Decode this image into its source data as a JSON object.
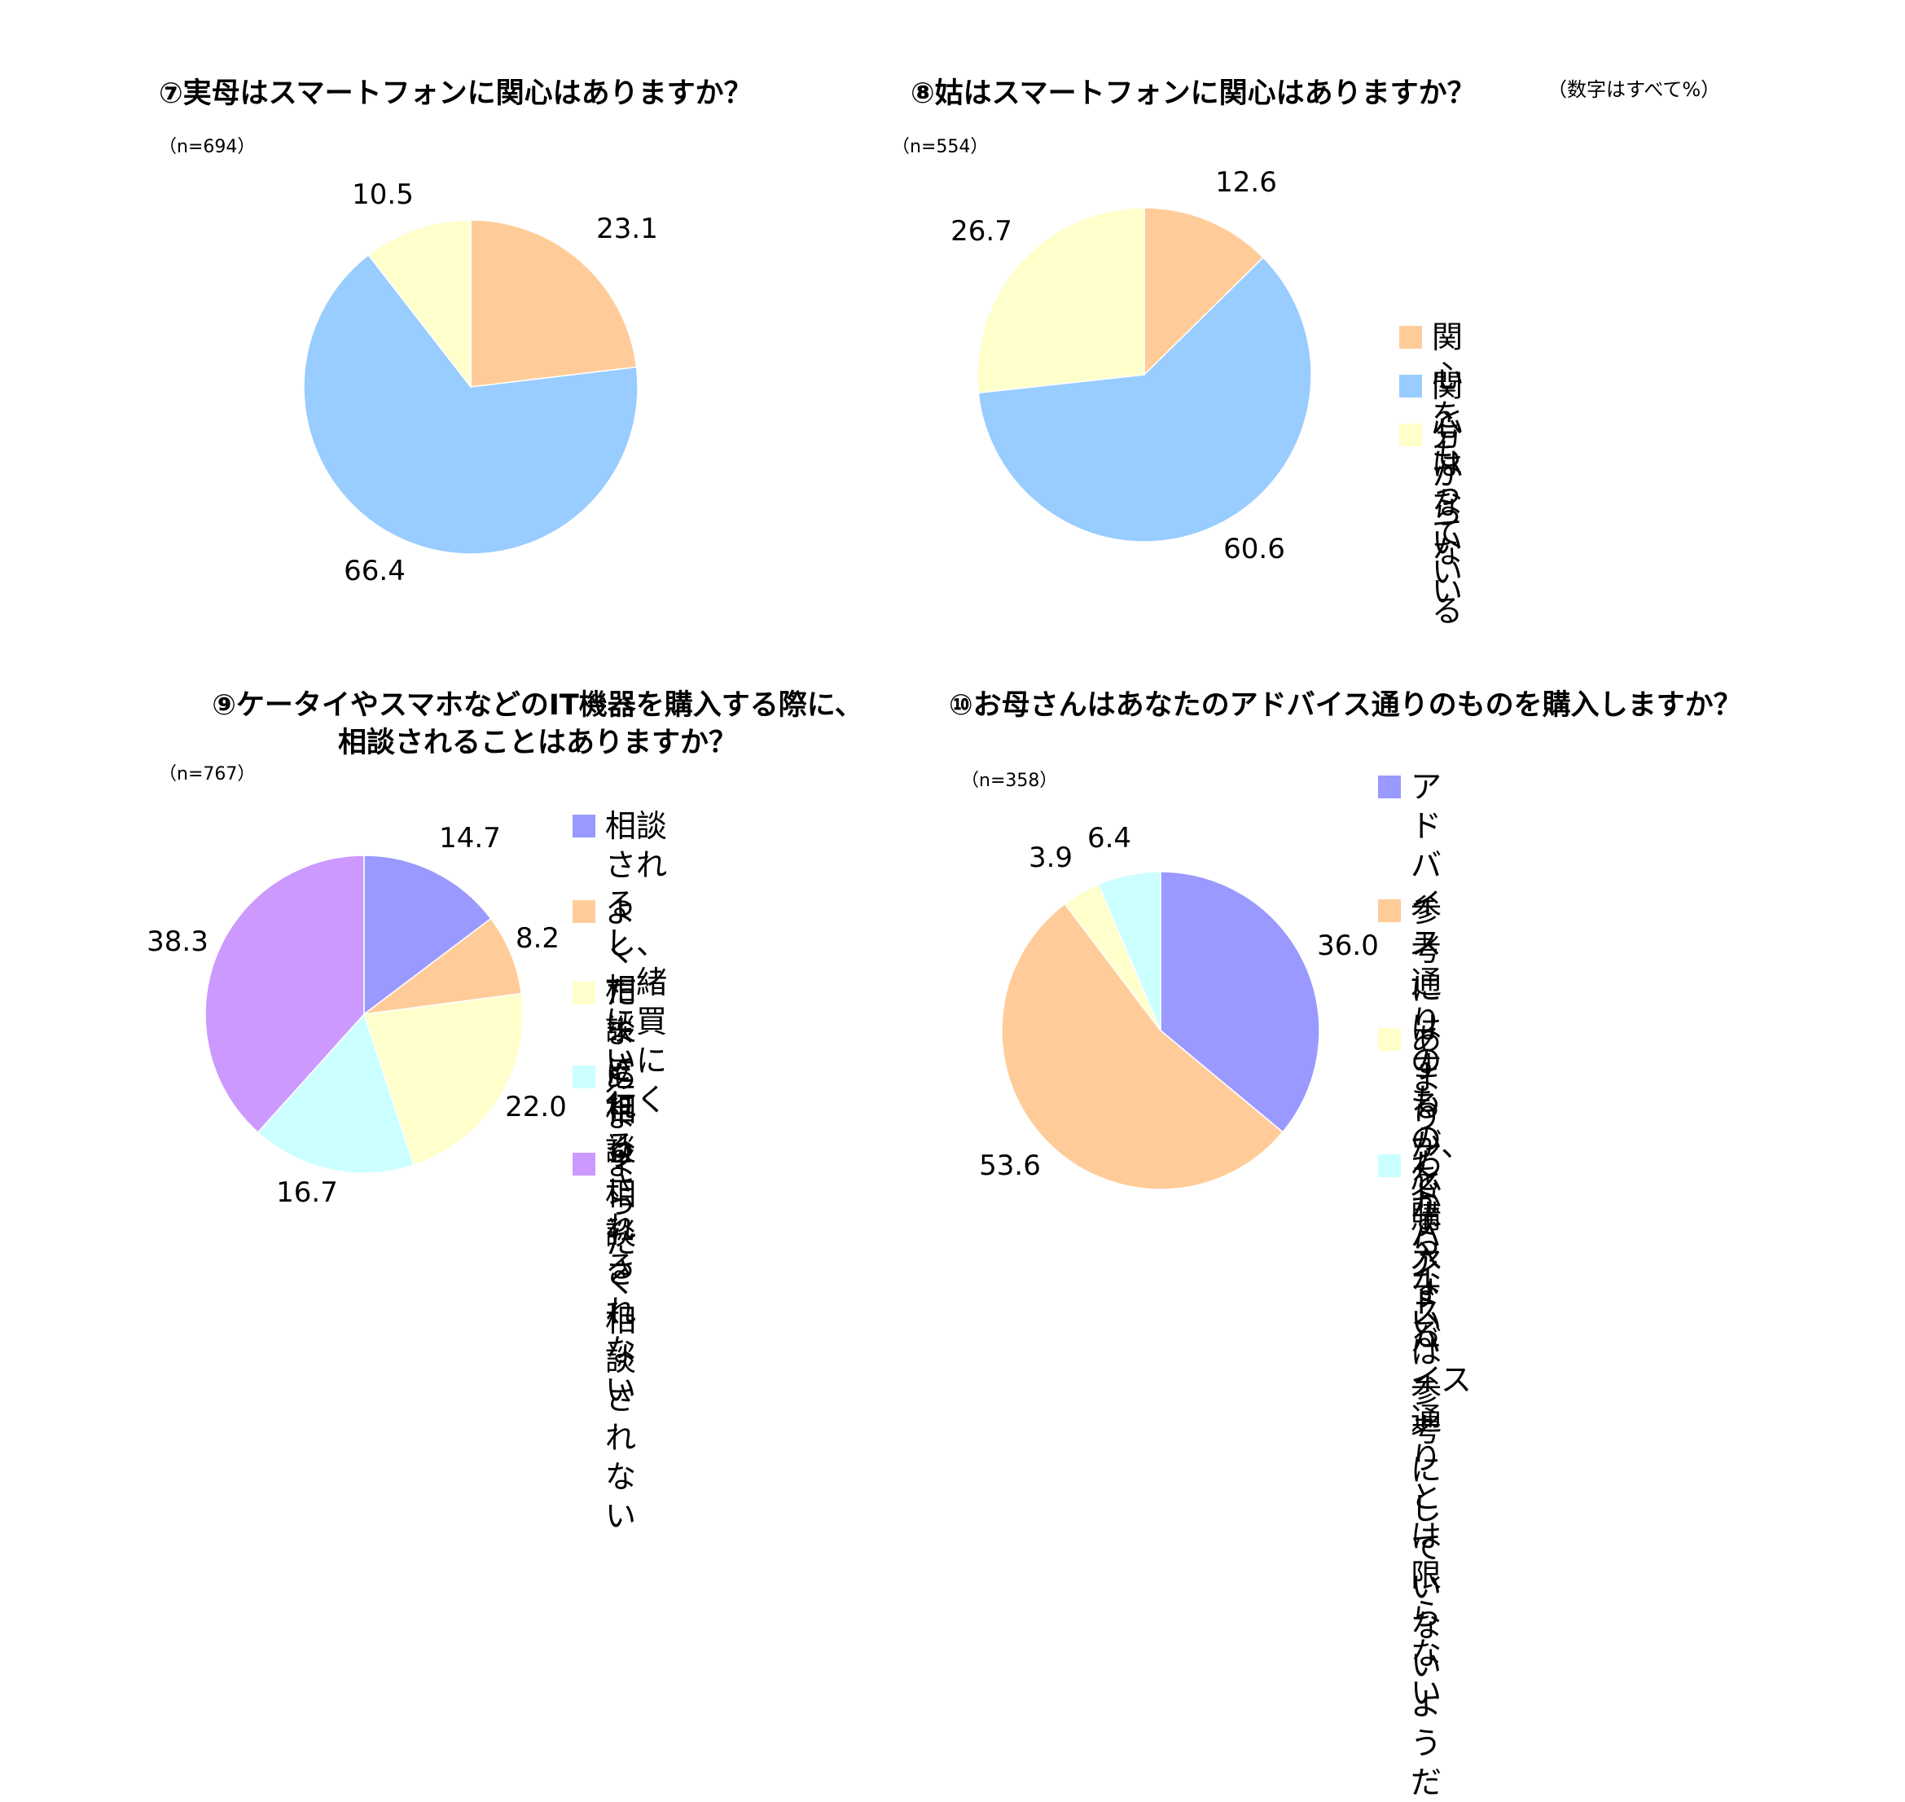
{
  "note": "（数字はすべて%）",
  "colors": {
    "peach": "#FFCC99",
    "sky": "#99CCFF",
    "cream": "#FFFFCC",
    "lavender": "#9999FF",
    "cyan": "#CCFFFF",
    "violet": "#CC99FF"
  },
  "legends": {
    "chart8": [
      {
        "label": "関心をもっている",
        "color": "#FFCC99"
      },
      {
        "label": "関心はない",
        "color": "#99CCFF"
      },
      {
        "label": "分からない",
        "color": "#FFFFCC"
      }
    ],
    "chart9": [
      {
        "label": "相談されるし、一緒\nに買いに行く",
        "color": "#9999FF"
      },
      {
        "label": "よく相談される",
        "color": "#FFCC99"
      },
      {
        "label": "たまに相談される",
        "color": "#FFFFCC"
      },
      {
        "label": "あまり相談されない",
        "color": "#CCFFFF"
      },
      {
        "label": "まったく相談されない",
        "color": "#CC99FF"
      }
    ],
    "chart10": [
      {
        "label": "アドバイス通りのもの\nを購入する",
        "color": "#9999FF"
      },
      {
        "label": "参考にはするが、必\nずアドバイス通りとは\n限らない",
        "color": "#FFCC99"
      },
      {
        "label": "あまりアドバイスは\n参考にしていないよ\nうだ",
        "color": "#FFFFCC"
      },
      {
        "label": "わからない",
        "color": "#CCFFFF"
      }
    ]
  },
  "chart_data": [
    {
      "type": "pie",
      "title": "⑦実母はスマートフォンに関心はありますか？",
      "n_label": "（n=694）",
      "values": [
        23.1,
        66.4,
        10.5
      ],
      "value_labels": [
        "23.1",
        "66.4",
        "10.5"
      ],
      "colors": [
        "#FFCC99",
        "#99CCFF",
        "#FFFFCC"
      ],
      "categories": [
        "関心をもっている",
        "関心はない",
        "分からない"
      ]
    },
    {
      "type": "pie",
      "title": "⑧姑はスマートフォンに関心はありますか？",
      "n_label": "（n=554）",
      "values": [
        12.6,
        60.6,
        26.7
      ],
      "value_labels": [
        "12.6",
        "60.6",
        "26.7"
      ],
      "colors": [
        "#FFCC99",
        "#99CCFF",
        "#FFFFCC"
      ],
      "categories": [
        "関心をもっている",
        "関心はない",
        "分からない"
      ]
    },
    {
      "type": "pie",
      "title_lines": [
        "⑨ケータイやスマホなどのIT機器を購入する際に、",
        "相談されることはありますか？"
      ],
      "n_label": "（n=767）",
      "values": [
        14.7,
        8.2,
        22.0,
        16.7,
        38.3
      ],
      "value_labels": [
        "14.7",
        "8.2",
        "22.0",
        "16.7",
        "38.3"
      ],
      "colors": [
        "#9999FF",
        "#FFCC99",
        "#FFFFCC",
        "#CCFFFF",
        "#CC99FF"
      ],
      "categories": [
        "相談されるし、一緒に買いに行く",
        "よく相談される",
        "たまに相談される",
        "あまり相談されない",
        "まったく相談されない"
      ]
    },
    {
      "type": "pie",
      "title": "⑩お母さんはあなたのアドバイス通りのものを購入しますか？",
      "n_label": "（n=358）",
      "values": [
        36.0,
        53.6,
        3.9,
        6.4
      ],
      "value_labels": [
        "36.0",
        "53.6",
        "3.9",
        "6.4"
      ],
      "colors": [
        "#9999FF",
        "#FFCC99",
        "#FFFFCC",
        "#CCFFFF"
      ],
      "categories": [
        "アドバイス通りのものを購入する",
        "参考にはするが、必ずアドバイス通りとは限らない",
        "あまりアドバイスは参考にしていないようだ",
        "わからない"
      ]
    }
  ]
}
